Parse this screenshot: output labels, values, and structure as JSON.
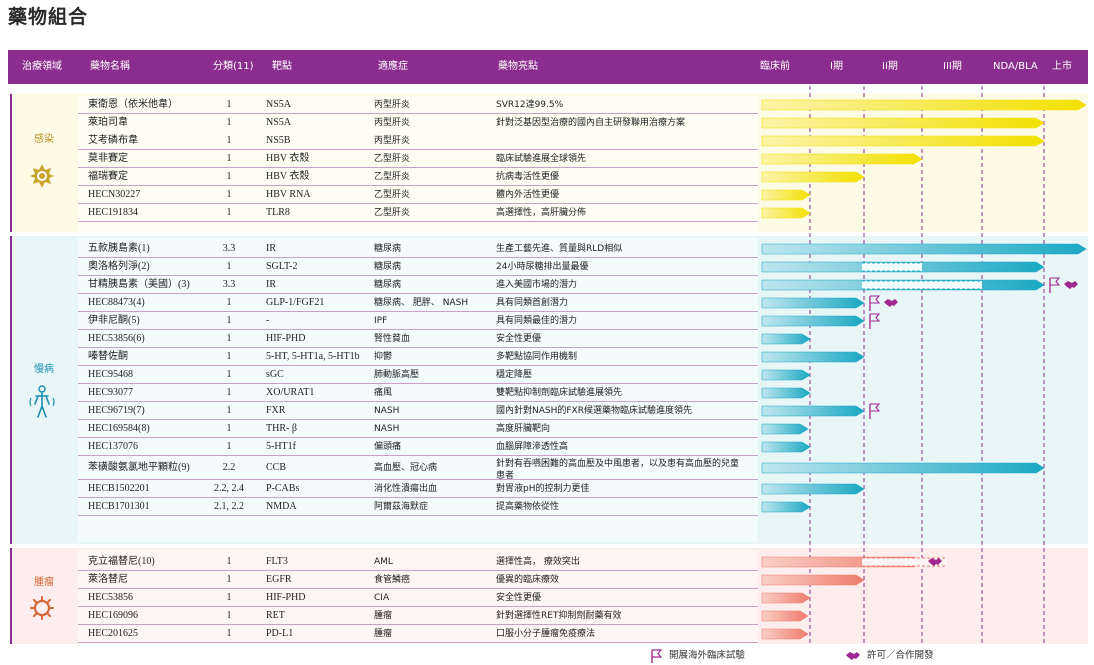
{
  "title": "藥物組合",
  "headers": [
    "治療領域",
    "藥物名稱",
    "分類(11)",
    "靶點",
    "適應症",
    "藥物亮點",
    "臨床前",
    "I期",
    "II期",
    "III期",
    "NDA/BLA",
    "上市"
  ],
  "colors": {
    "purple": "#8b2d8f",
    "infect_bar": "#f2e000",
    "chronic_bar": "#1aa8c4",
    "onc_bar": "#ef7b6b"
  },
  "sections": [
    {
      "label": "感染",
      "icon": "virus-icon",
      "rows": [
        {
          "name": "東衛恩（依米他韋）",
          "cls": "1",
          "target": "NS5A",
          "ind": "丙型肝炎",
          "hl": "SVR12達99.5%",
          "phase": 6
        },
        {
          "name": "萊珀司韋",
          "cls": "1",
          "target": "NS5A",
          "ind": "丙型肝炎",
          "hl": "針對泛基因型治療的國內自主研發聯用治療方案",
          "phase": 5
        },
        {
          "name": "艾考磷布韋",
          "cls": "1",
          "target": "NS5B",
          "ind": "丙型肝炎",
          "hl": "",
          "phase": 5
        },
        {
          "name": "莫非賽定",
          "cls": "1",
          "target": "HBV 衣殼",
          "ind": "乙型肝炎",
          "hl": "臨床試驗進展全球領先",
          "phase": 3
        },
        {
          "name": "福瑞賽定",
          "cls": "1",
          "target": "HBV 衣殼",
          "ind": "乙型肝炎",
          "hl": "抗病毒活性更優",
          "phase": 2
        },
        {
          "name": "HECN30227",
          "cls": "1",
          "target": "HBV RNA",
          "ind": "乙型肝炎",
          "hl": "體內外活性更優",
          "phase": 1
        },
        {
          "name": "HEC191834",
          "cls": "1",
          "target": "TLR8",
          "ind": "乙型肝炎",
          "hl": "高選擇性，高肝臟分佈",
          "phase": 1
        }
      ]
    },
    {
      "label": "慢病",
      "icon": "human-body-icon",
      "rows": [
        {
          "name": "五款胰島素(1)",
          "cls": "3.3",
          "target": "IR",
          "ind": "糖尿病",
          "hl": "生產工藝先進、質量與RLD相似",
          "phase": 6
        },
        {
          "name": "奧洛格列淨(2)",
          "cls": "1",
          "target": "SGLT-2",
          "ind": "糖尿病",
          "hl": "24小時尿糖排出量最優",
          "phase": 5
        },
        {
          "name": "甘精胰島素（美國）(3)",
          "cls": "3.3",
          "target": "IR",
          "ind": "糖尿病",
          "hl": "進入美國市場的潛力",
          "phase": 5
        },
        {
          "name": "HEC88473(4)",
          "cls": "1",
          "target": "GLP-1/FGF21",
          "ind": "糖尿病、 肥胖、 NASH",
          "hl": "具有同類首創潛力",
          "phase": 2
        },
        {
          "name": "伊非尼酮(5)",
          "cls": "1",
          "target": "-",
          "ind": "IPF",
          "hl": "具有同類最佳的潛力",
          "phase": 2
        },
        {
          "name": "HEC53856(6)",
          "cls": "1",
          "target": "HIF-PHD",
          "ind": "腎性貧血",
          "hl": "安全性更優",
          "phase": 1
        },
        {
          "name": "嗪替佐酮",
          "cls": "1",
          "target": "5-HT, 5-HT1a, 5-HT1b",
          "ind": "抑鬱",
          "hl": "多靶點協同作用機制",
          "phase": 2
        },
        {
          "name": "HEC95468",
          "cls": "1",
          "target": "sGC",
          "ind": "肺動脈高壓",
          "hl": "穩定降壓",
          "phase": 1
        },
        {
          "name": "HEC93077",
          "cls": "1",
          "target": "XO/URAT1",
          "ind": "痛風",
          "hl": "雙靶點抑制劑臨床試驗進展領先",
          "phase": 1
        },
        {
          "name": "HEC96719(7)",
          "cls": "1",
          "target": "FXR",
          "ind": "NASH",
          "hl": "國內針對NASH的FXR候選藥物臨床試驗進度領先",
          "phase": 2
        },
        {
          "name": "HEC169584(8)",
          "cls": "1",
          "target": "THR- β",
          "ind": "NASH",
          "hl": "高度肝臟靶向",
          "phase": 0
        },
        {
          "name": "HEC137076",
          "cls": "1",
          "target": "5-HT1f",
          "ind": "偏頭痛",
          "hl": "血腦屏障滲透性高",
          "phase": 1
        },
        {
          "name": "苯磺酸氨氯地平顆粒(9)",
          "cls": "2.2",
          "target": "CCB",
          "ind": "高血壓、冠心病",
          "hl": "針對有吞嚥困難的高血壓及中風患者，以及患有高血壓的兒童患者",
          "phase": 5
        },
        {
          "name": "HECB1502201",
          "cls": "2.2, 2.4",
          "target": "P-CABs",
          "ind": "消化性潰瘍出血",
          "hl": "對胃液pH的控制力更佳",
          "phase": 2
        },
        {
          "name": "HECB1701301",
          "cls": "2.1, 2.2",
          "target": "NMDA",
          "ind": "阿爾茲海默症",
          "hl": "提高藥物依從性",
          "phase": 1
        }
      ]
    },
    {
      "label": "腫瘤",
      "icon": "cell-icon",
      "rows": [
        {
          "name": "克立福替尼(10)",
          "cls": "1",
          "target": "FLT3",
          "ind": "AML",
          "hl": "選擇性高， 療效突出",
          "phase": 3
        },
        {
          "name": "萊洛替尼",
          "cls": "1",
          "target": "EGFR",
          "ind": "食管鱗癌",
          "hl": "優異的臨床療效",
          "phase": 2
        },
        {
          "name": "HEC53856",
          "cls": "1",
          "target": "HIF-PHD",
          "ind": "CIA",
          "hl": "安全性更優",
          "phase": 1
        },
        {
          "name": "HEC169096",
          "cls": "1",
          "target": "RET",
          "ind": "腫瘤",
          "hl": "針對選擇性RET抑制劑耐藥有效",
          "phase": 0
        },
        {
          "name": "HEC201625",
          "cls": "1",
          "target": "PD-L1",
          "ind": "腫瘤",
          "hl": "口服小分子腫瘤免疫療法",
          "phase": 0
        }
      ]
    }
  ],
  "legend": {
    "flag_label": "開展海外臨床試驗",
    "handshake_label": "許可／合作開發"
  }
}
